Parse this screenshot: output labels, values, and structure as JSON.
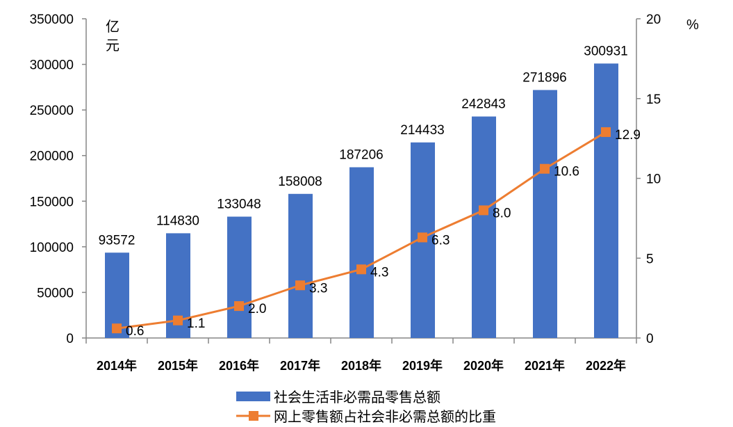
{
  "chart_data": {
    "type": "bar+line",
    "categories": [
      "2014年",
      "2015年",
      "2016年",
      "2017年",
      "2018年",
      "2019年",
      "2020年",
      "2021年",
      "2022年"
    ],
    "series": [
      {
        "name": "社会生活非必需品零售总额",
        "type": "bar",
        "axis": "left",
        "color": "#4472C4",
        "values": [
          93572,
          114830,
          133048,
          158008,
          187206,
          214433,
          242843,
          271896,
          300931
        ]
      },
      {
        "name": "网上零售额占社会非必需总额的比重",
        "type": "line",
        "axis": "right",
        "color": "#ED7D31",
        "values": [
          0.6,
          1.1,
          2.0,
          3.3,
          4.3,
          6.3,
          8.0,
          10.6,
          12.9
        ]
      }
    ],
    "y_left": {
      "label": "亿元",
      "range": [
        0,
        350000
      ],
      "ticks": [
        0,
        50000,
        100000,
        150000,
        200000,
        250000,
        300000,
        350000
      ]
    },
    "y_right": {
      "label": "%",
      "range": [
        0,
        20
      ],
      "ticks": [
        0,
        5,
        10,
        15,
        20
      ]
    },
    "grid": false,
    "legend": "bottom"
  }
}
